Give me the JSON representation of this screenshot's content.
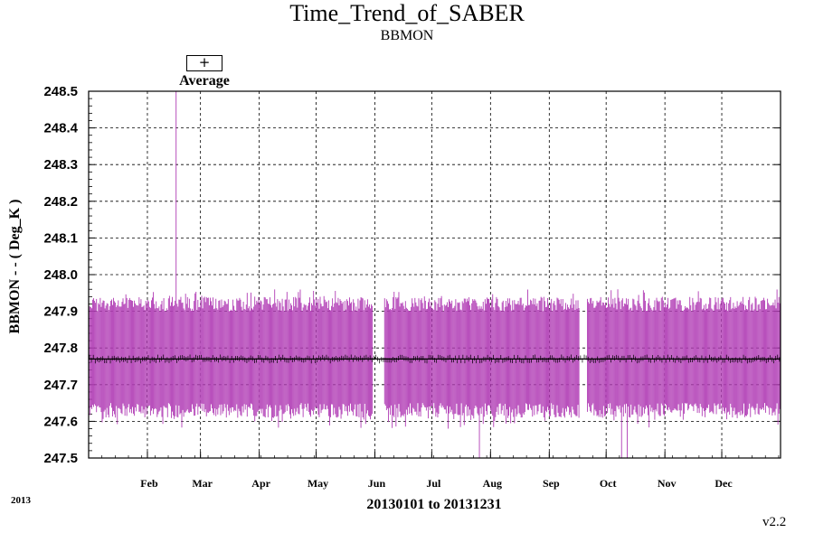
{
  "title": "Time_Trend_of_SABER",
  "subtitle": "BBMON",
  "legend": {
    "symbol": "+",
    "label": "Average"
  },
  "year_label": "2013",
  "version": "v2.2",
  "colors": {
    "range": "#b13db5",
    "average": "#000000",
    "grid": "#000000"
  },
  "chart_data": {
    "type": "line",
    "ylabel": "BBMON  - - ( Deg_K )",
    "xlabel": "20130101 to 20131231",
    "ylim": [
      247.5,
      248.5
    ],
    "yticks": [
      "248.5",
      "248.4",
      "248.3",
      "248.2",
      "248.1",
      "248.0",
      "247.9",
      "247.8",
      "247.7",
      "247.6",
      "247.5"
    ],
    "xlim": [
      "2013-01-01",
      "2013-12-31"
    ],
    "xticks": [
      {
        "label": "Feb",
        "date": "2013-02-01"
      },
      {
        "label": "Mar",
        "date": "2013-03-01"
      },
      {
        "label": "Apr",
        "date": "2013-04-01"
      },
      {
        "label": "May",
        "date": "2013-05-01"
      },
      {
        "label": "Jun",
        "date": "2013-06-01"
      },
      {
        "label": "Jul",
        "date": "2013-07-01"
      },
      {
        "label": "Aug",
        "date": "2013-08-01"
      },
      {
        "label": "Sep",
        "date": "2013-09-01"
      },
      {
        "label": "Oct",
        "date": "2013-10-01"
      },
      {
        "label": "Nov",
        "date": "2013-11-01"
      },
      {
        "label": "Dec",
        "date": "2013-12-01"
      }
    ],
    "grid": true,
    "legend_position": "top-left",
    "series": [
      {
        "name": "Average",
        "marker": "+",
        "mean_level": 247.77,
        "typical_range": [
          247.61,
          247.94
        ],
        "notable_points": [
          {
            "date": "2013-02-16",
            "max": 248.5,
            "note": "spike"
          },
          {
            "date": "2013-07-26",
            "min": 247.5,
            "note": "dip"
          },
          {
            "date": "2013-10-09",
            "min": 247.5,
            "note": "dip"
          },
          {
            "date": "2013-10-12",
            "min": 247.5,
            "note": "dip"
          }
        ]
      }
    ]
  }
}
